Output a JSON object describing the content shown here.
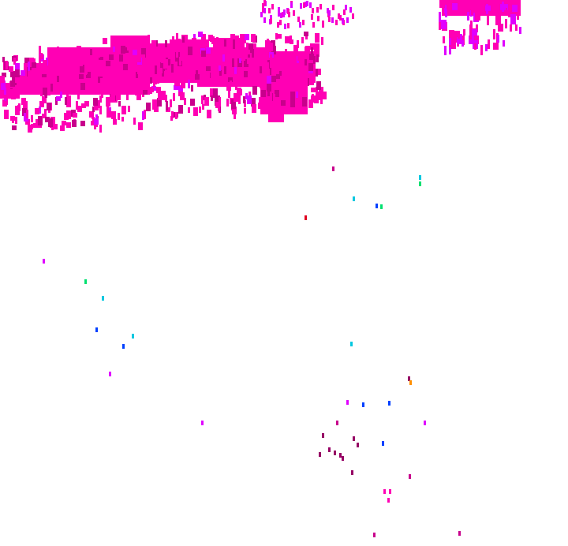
{
  "colors": {
    "background": "#ffffff",
    "primary": "#ff00b4",
    "primary_dark": "#c8008c",
    "violet": "#e000ff",
    "deep": "#960064",
    "green": "#00e070",
    "cyan": "#00c8e0",
    "blue": "#0040ff",
    "red": "#e00020",
    "orange": "#ff9000"
  }
}
